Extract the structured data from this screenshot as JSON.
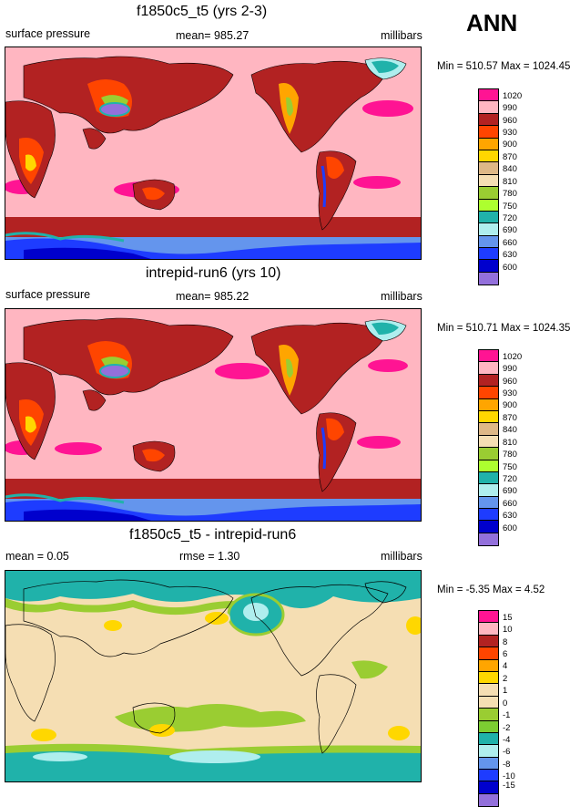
{
  "season": "ANN",
  "panels": [
    {
      "title": "f1850c5_t5 (yrs 2-3)",
      "variable": "surface pressure",
      "stat": "mean= 985.27",
      "units": "millibars",
      "minmax": "Min = 510.57 Max = 1024.45"
    },
    {
      "title": "intrepid-run6 (yrs 10)",
      "variable": "surface pressure",
      "stat": "mean= 985.22",
      "units": "millibars",
      "minmax": "Min = 510.71 Max = 1024.35"
    },
    {
      "title": "f1850c5_t5 - intrepid-run6",
      "variable": "mean =   0.05",
      "stat": "rmse =   1.30",
      "units": "millibars",
      "minmax": "Min =  -5.35 Max =   4.52"
    }
  ],
  "colorbar_pressure": {
    "labels": [
      "1020",
      "990",
      "960",
      "930",
      "900",
      "870",
      "840",
      "810",
      "780",
      "750",
      "720",
      "690",
      "660",
      "630",
      "600"
    ],
    "colors": [
      "#ff1493",
      "#ffb6c1",
      "#b22222",
      "#ff4500",
      "#ffa500",
      "#ffd700",
      "#deb887",
      "#f5deb3",
      "#9acd32",
      "#adff2f",
      "#20b2aa",
      "#afeeee",
      "#6495ed",
      "#1e3cff",
      "#0000cd",
      "#9370db"
    ]
  },
  "colorbar_diff": {
    "labels": [
      "15",
      "10",
      "8",
      "6",
      "4",
      "2",
      "1",
      "0",
      "-1",
      "-2",
      "-4",
      "-6",
      "-8",
      "-10",
      "-15"
    ],
    "colors": [
      "#ff1493",
      "#ffb6c1",
      "#b22222",
      "#ff4500",
      "#ffa500",
      "#ffd700",
      "#f5deb3",
      "#f5deb3",
      "#9acd32",
      "#7ccd32",
      "#20b2aa",
      "#afeeee",
      "#6495ed",
      "#1e3cff",
      "#0000cd",
      "#9370db"
    ]
  }
}
